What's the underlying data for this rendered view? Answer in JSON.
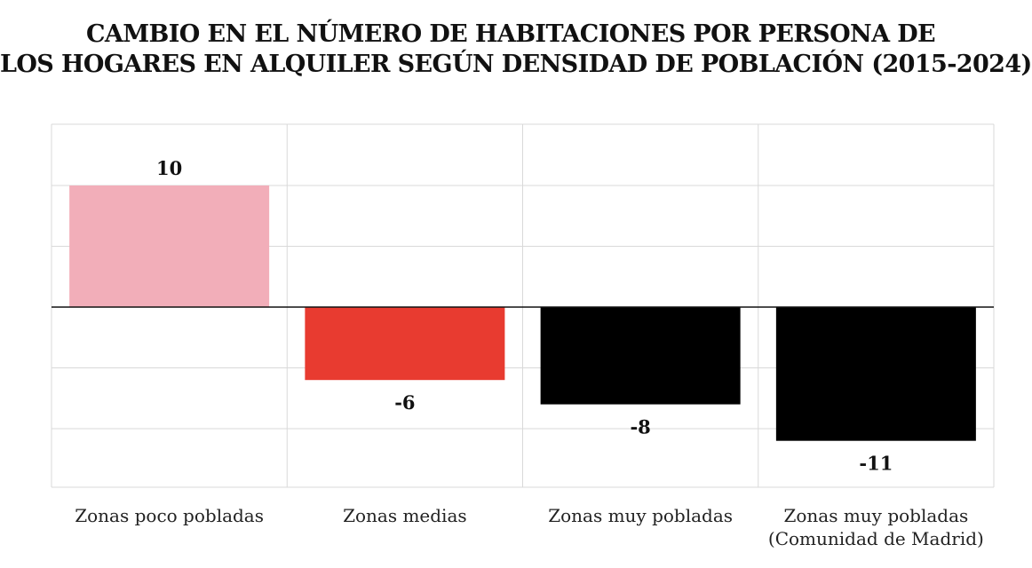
{
  "title_line1": "CAMBIO EN EL NÚMERO DE HABITACIONES POR PERSONA DE",
  "title_line2": "LOS HOGARES EN ALQUILER SEGÚN DENSIDAD DE POBLACIÓN (2015-2024)",
  "chart_data": {
    "type": "bar",
    "categories": [
      [
        "Zonas poco pobladas"
      ],
      [
        "Zonas medias"
      ],
      [
        "Zonas muy pobladas"
      ],
      [
        "Zonas muy pobladas",
        "(Comunidad de Madrid)"
      ]
    ],
    "values": [
      10,
      -6,
      -8,
      -11
    ],
    "value_labels": [
      "10",
      "-6",
      "-8",
      "-11"
    ],
    "bar_colors": [
      "#f2aeb9",
      "#e83b30",
      "#000000",
      "#000000"
    ],
    "ylim": [
      -15,
      15
    ],
    "grid_step": 5,
    "grid": true,
    "legend": "none",
    "xlabel": "",
    "ylabel": ""
  }
}
